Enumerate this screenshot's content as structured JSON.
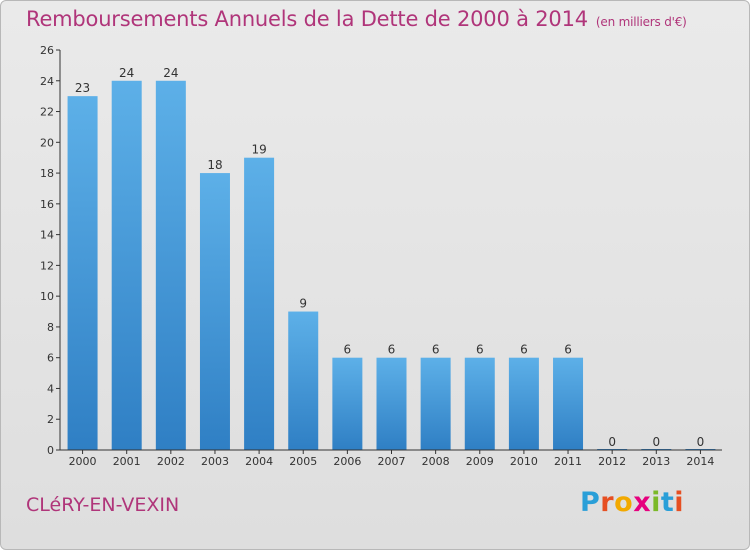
{
  "header": {
    "title": "Remboursements Annuels de la Dette de 2000 à 2014",
    "unit": "(en milliers d'€)"
  },
  "footer": {
    "commune": "CLéRY-EN-VEXIN",
    "logo_letters": [
      "P",
      "r",
      "o",
      "x",
      "i",
      "t",
      "i"
    ],
    "logo_colors": [
      "#2a9fd8",
      "#e64f22",
      "#f2a900",
      "#e6007e",
      "#7bb928",
      "#2a9fd8",
      "#e64f22"
    ]
  },
  "colors": {
    "bar_top": "#5db0e8",
    "bar_bottom": "#2f7fc4",
    "title": "#b0357a",
    "gridline": "#c8c8c8"
  },
  "chart_data": {
    "type": "bar",
    "title": "Remboursements Annuels de la Dette de 2000 à 2014",
    "unit": "(en milliers d'€)",
    "categories": [
      "2000",
      "2001",
      "2002",
      "2003",
      "2004",
      "2005",
      "2006",
      "2007",
      "2008",
      "2009",
      "2010",
      "2011",
      "2012",
      "2013",
      "2014"
    ],
    "values": [
      23,
      24,
      24,
      18,
      19,
      9,
      6,
      6,
      6,
      6,
      6,
      6,
      0,
      0,
      0
    ],
    "ylim": [
      0,
      26
    ],
    "yticks": [
      0,
      2,
      4,
      6,
      8,
      10,
      12,
      14,
      16,
      18,
      20,
      22,
      24,
      26
    ],
    "xlabel": "",
    "ylabel": "",
    "grid": false,
    "legend": "none"
  }
}
